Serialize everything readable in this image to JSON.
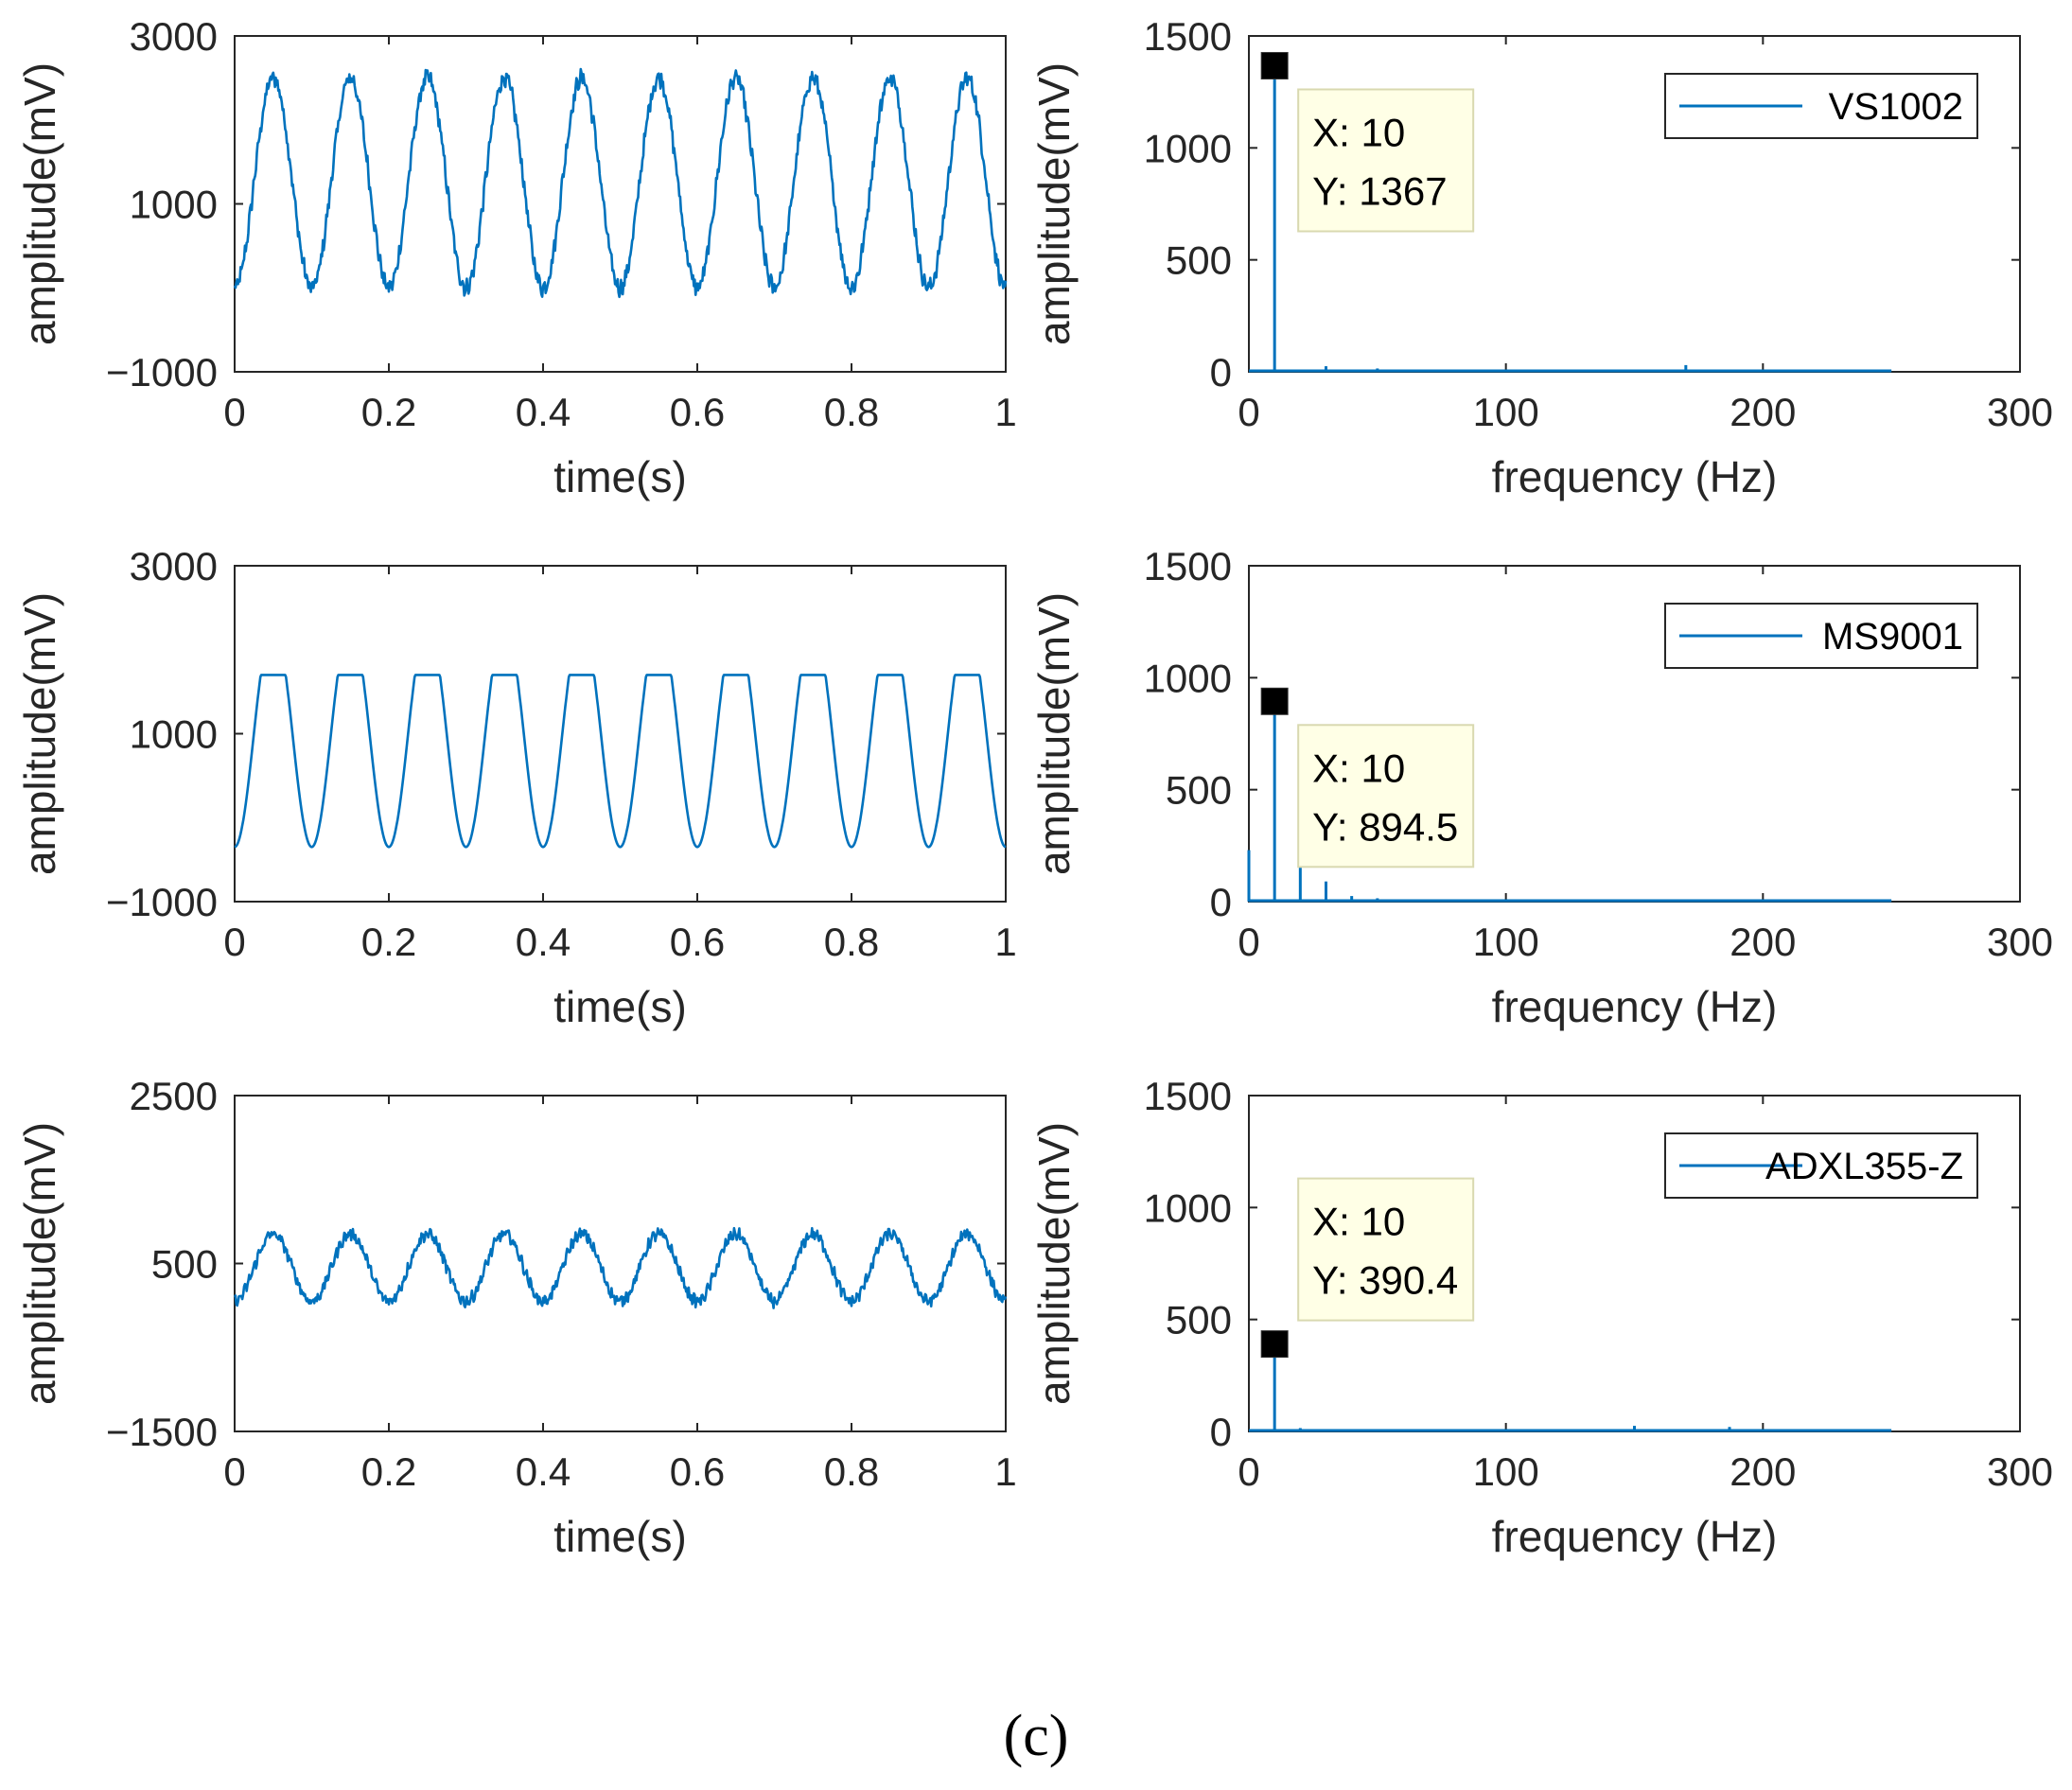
{
  "caption": "(c)",
  "colors": {
    "trace": "#0072BD",
    "axes": "#262626",
    "tooltip_bg": "#ffffe6"
  },
  "chart_data": [
    {
      "id": "time-1",
      "type": "line",
      "sensor": "VS1002",
      "xlabel": "time(s)",
      "ylabel": "amplitude(mV)",
      "xlim": [
        0,
        1
      ],
      "ylim": [
        -1000,
        3000
      ],
      "xticks": [
        0,
        0.2,
        0.4,
        0.6,
        0.8,
        1
      ],
      "xtick_labels": [
        "0",
        "0.2",
        "0.4",
        "0.6",
        "0.8",
        "1"
      ],
      "yticks": [
        -1000,
        1000,
        3000
      ],
      "ytick_labels": [
        "−1000",
        "1000",
        "3000"
      ],
      "signal": {
        "frequency_hz": 10,
        "offset_mv": 1250,
        "amplitude_mv": 1250,
        "noise_mv": 90,
        "clip_mv": null
      }
    },
    {
      "id": "freq-1",
      "type": "line",
      "sensor": "VS1002",
      "xlabel": "frequency (Hz)",
      "ylabel": "amplitude(mV)",
      "xlim": [
        0,
        300
      ],
      "ylim": [
        0,
        1500
      ],
      "xticks": [
        0,
        100,
        200,
        300
      ],
      "xtick_labels": [
        "0",
        "100",
        "200",
        "300"
      ],
      "yticks": [
        0,
        500,
        1000,
        1500
      ],
      "ytick_labels": [
        "0",
        "500",
        "1000",
        "1500"
      ],
      "legend": "VS1002",
      "peak": {
        "x": 10,
        "y": 1367
      },
      "datatip": {
        "x_label": "X: 10",
        "y_label": "Y: 1367"
      },
      "spikes": [
        {
          "x": 10,
          "y": 1367
        },
        {
          "x": 30,
          "y": 25
        },
        {
          "x": 50,
          "y": 15
        },
        {
          "x": 170,
          "y": 30
        }
      ],
      "max_frequency_hz": 250
    },
    {
      "id": "time-2",
      "type": "line",
      "sensor": "MS9001",
      "xlabel": "time(s)",
      "ylabel": "amplitude(mV)",
      "xlim": [
        0,
        1
      ],
      "ylim": [
        -1000,
        3000
      ],
      "xticks": [
        0,
        0.2,
        0.4,
        0.6,
        0.8,
        1
      ],
      "xtick_labels": [
        "0",
        "0.2",
        "0.4",
        "0.6",
        "0.8",
        "1"
      ],
      "yticks": [
        -1000,
        1000,
        3000
      ],
      "ytick_labels": [
        "−1000",
        "1000",
        "3000"
      ],
      "signal": {
        "frequency_hz": 10,
        "offset_mv": 1000,
        "amplitude_mv": 1350,
        "noise_mv": 0,
        "clip_mv": 1700
      }
    },
    {
      "id": "freq-2",
      "type": "line",
      "sensor": "MS9001",
      "xlabel": "frequency (Hz)",
      "ylabel": "amplitude(mV)",
      "xlim": [
        0,
        300
      ],
      "ylim": [
        0,
        1500
      ],
      "xticks": [
        0,
        100,
        200,
        300
      ],
      "xtick_labels": [
        "0",
        "100",
        "200",
        "300"
      ],
      "yticks": [
        0,
        500,
        1000,
        1500
      ],
      "ytick_labels": [
        "0",
        "500",
        "1000",
        "1500"
      ],
      "legend": "MS9001",
      "peak": {
        "x": 10,
        "y": 894.5
      },
      "datatip": {
        "x_label": "X: 10",
        "y_label": "Y: 894.5"
      },
      "spikes": [
        {
          "x": 0,
          "y": 230
        },
        {
          "x": 10,
          "y": 894.5
        },
        {
          "x": 20,
          "y": 170
        },
        {
          "x": 30,
          "y": 90
        },
        {
          "x": 40,
          "y": 25
        },
        {
          "x": 50,
          "y": 15
        }
      ],
      "max_frequency_hz": 250
    },
    {
      "id": "time-3",
      "type": "line",
      "sensor": "ADXL355-Z",
      "xlabel": "time(s)",
      "ylabel": "amplitude(mV)",
      "xlim": [
        0,
        1
      ],
      "ylim": [
        -1500,
        2500
      ],
      "xticks": [
        0,
        0.2,
        0.4,
        0.6,
        0.8,
        1
      ],
      "xtick_labels": [
        "0",
        "0.2",
        "0.4",
        "0.6",
        "0.8",
        "1"
      ],
      "yticks": [
        -1500,
        500,
        2500
      ],
      "ytick_labels": [
        "−1500",
        "500",
        "2500"
      ],
      "signal": {
        "frequency_hz": 10,
        "offset_mv": 450,
        "amplitude_mv": 400,
        "noise_mv": 60,
        "clip_mv": null
      }
    },
    {
      "id": "freq-3",
      "type": "line",
      "sensor": "ADXL355-Z",
      "xlabel": "frequency (Hz)",
      "ylabel": "amplitude(mV)",
      "xlim": [
        0,
        300
      ],
      "ylim": [
        0,
        1500
      ],
      "xticks": [
        0,
        100,
        200,
        300
      ],
      "xtick_labels": [
        "0",
        "100",
        "200",
        "300"
      ],
      "yticks": [
        0,
        500,
        1000,
        1500
      ],
      "ytick_labels": [
        "0",
        "500",
        "1000",
        "1500"
      ],
      "legend": "ADXL355-Z",
      "peak": {
        "x": 10,
        "y": 390.4
      },
      "datatip": {
        "x_label": "X: 10",
        "y_label": "Y: 390.4"
      },
      "spikes": [
        {
          "x": 10,
          "y": 390.4
        },
        {
          "x": 20,
          "y": 15
        },
        {
          "x": 150,
          "y": 25
        },
        {
          "x": 187,
          "y": 20
        }
      ],
      "max_frequency_hz": 250
    }
  ]
}
